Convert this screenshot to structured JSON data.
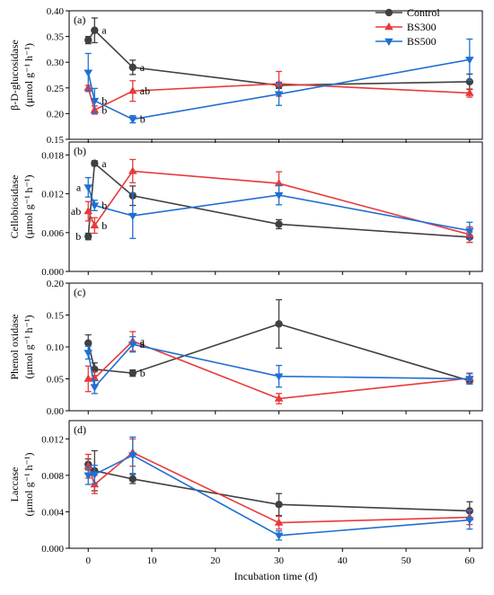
{
  "x_axis": {
    "label": "Incubation time (d)",
    "ticks": [
      "0",
      "10",
      "20",
      "30",
      "40",
      "50",
      "60"
    ],
    "xlim": [
      -3,
      62
    ]
  },
  "legend": {
    "placement": "top-right",
    "items": [
      {
        "name": "Control",
        "color": "#404040",
        "marker": "circle"
      },
      {
        "name": "BS300",
        "color": "#e8393b",
        "marker": "triangle-up"
      },
      {
        "name": "BS500",
        "color": "#1f6fd1",
        "marker": "triangle-down"
      }
    ]
  },
  "panels": [
    {
      "label": "(a)",
      "ylabel_line1": "β-D-glucosidase",
      "ylabel_line2": "(μmol g⁻¹ h⁻¹)",
      "ticks": [
        "0.15",
        "0.20",
        "0.25",
        "0.30",
        "0.35",
        "0.40"
      ]
    },
    {
      "label": "(b)",
      "ylabel_line1": "Cellobiosidase",
      "ylabel_line2": "(μmol g⁻¹ h⁻¹)",
      "ticks": [
        "0.000",
        "0.006",
        "0.012",
        "0.018"
      ]
    },
    {
      "label": "(c)",
      "ylabel_line1": "Phenol oxidase",
      "ylabel_line2": "(μmol g⁻¹ h⁻¹)",
      "ticks": [
        "0.00",
        "0.05",
        "0.10",
        "0.15",
        "0.20"
      ]
    },
    {
      "label": "(d)",
      "ylabel_line1": "Laccase",
      "ylabel_line2": "(μmol g⁻¹ h⁻¹)",
      "ticks": [
        "0.000",
        "0.004",
        "0.008",
        "0.012"
      ]
    }
  ],
  "chart_data": [
    {
      "type": "line",
      "panel": "(a)",
      "ylabel": "β-D-glucosidase (μmol g⁻¹ h⁻¹)",
      "xlabel": "Incubation time (d)",
      "ylim": [
        0.15,
        0.4
      ],
      "x": [
        0,
        1,
        7,
        30,
        60
      ],
      "series": [
        {
          "name": "Control",
          "values": [
            0.343,
            0.362,
            0.29,
            0.255,
            0.262
          ],
          "err": [
            0.007,
            0.024,
            0.014,
            0.006,
            0.015
          ]
        },
        {
          "name": "BS300",
          "values": [
            0.25,
            0.207,
            0.244,
            0.258,
            0.24
          ],
          "err": [
            0.005,
            0.008,
            0.02,
            0.024,
            0.008
          ]
        },
        {
          "name": "BS500",
          "values": [
            0.28,
            0.225,
            0.189,
            0.238,
            0.305
          ],
          "err": [
            0.037,
            0.024,
            0.007,
            0.022,
            0.04
          ]
        }
      ],
      "annotations": [
        {
          "text": "a",
          "x": 1,
          "y": 0.362
        },
        {
          "text": "b",
          "x": 1,
          "y": 0.207
        },
        {
          "text": "b",
          "x": 1,
          "y": 0.225
        },
        {
          "text": "a",
          "x": 7,
          "y": 0.29
        },
        {
          "text": "ab",
          "x": 7,
          "y": 0.244
        },
        {
          "text": "b",
          "x": 7,
          "y": 0.189
        }
      ]
    },
    {
      "type": "line",
      "panel": "(b)",
      "ylabel": "Cellobiosidase (μmol g⁻¹ h⁻¹)",
      "xlabel": "Incubation time (d)",
      "ylim": [
        0.0,
        0.02
      ],
      "x": [
        0,
        1,
        7,
        30,
        60
      ],
      "series": [
        {
          "name": "Control",
          "values": [
            0.0054,
            0.0167,
            0.0117,
            0.0073,
            0.0053
          ],
          "err": [
            0.0005,
            0.0004,
            0.0015,
            0.0007,
            0.0008
          ]
        },
        {
          "name": "BS300",
          "values": [
            0.0093,
            0.0071,
            0.0155,
            0.0136,
            0.0057
          ],
          "err": [
            0.0015,
            0.0012,
            0.0018,
            0.0018,
            0.0012
          ]
        },
        {
          "name": "BS500",
          "values": [
            0.013,
            0.0102,
            0.0086,
            0.0118,
            0.0063
          ],
          "err": [
            0.0015,
            0.0008,
            0.0035,
            0.0015,
            0.0013
          ]
        }
      ],
      "annotations": [
        {
          "text": "a",
          "x": 0,
          "y": 0.013
        },
        {
          "text": "ab",
          "x": 0,
          "y": 0.0093
        },
        {
          "text": "b",
          "x": 0,
          "y": 0.0054
        },
        {
          "text": "a",
          "x": 1,
          "y": 0.0167
        },
        {
          "text": "b",
          "x": 1,
          "y": 0.0102
        },
        {
          "text": "b",
          "x": 1,
          "y": 0.0071
        }
      ]
    },
    {
      "type": "line",
      "panel": "(c)",
      "ylabel": "Phenol oxidase (μmol g⁻¹ h⁻¹)",
      "xlabel": "Incubation time (d)",
      "ylim": [
        0.0,
        0.2
      ],
      "x": [
        0,
        1,
        7,
        30,
        60
      ],
      "series": [
        {
          "name": "Control",
          "values": [
            0.106,
            0.065,
            0.059,
            0.136,
            0.047
          ],
          "err": [
            0.013,
            0.01,
            0.005,
            0.038,
            0.005
          ]
        },
        {
          "name": "BS300",
          "values": [
            0.05,
            0.051,
            0.109,
            0.019,
            0.051
          ],
          "err": [
            0.02,
            0.01,
            0.015,
            0.008,
            0.008
          ]
        },
        {
          "name": "BS500",
          "values": [
            0.091,
            0.037,
            0.104,
            0.054,
            0.05
          ],
          "err": [
            0.01,
            0.01,
            0.012,
            0.017,
            0.008
          ]
        }
      ],
      "annotations": [
        {
          "text": "a",
          "x": 7,
          "y": 0.109
        },
        {
          "text": "a",
          "x": 7,
          "y": 0.104
        },
        {
          "text": "b",
          "x": 7,
          "y": 0.059
        }
      ]
    },
    {
      "type": "line",
      "panel": "(d)",
      "ylabel": "Laccase (μmol g⁻¹ h⁻¹)",
      "xlabel": "Incubation time (d)",
      "ylim": [
        0.0,
        0.014
      ],
      "x": [
        0,
        1,
        7,
        30,
        60
      ],
      "series": [
        {
          "name": "Control",
          "values": [
            0.0092,
            0.0085,
            0.0076,
            0.0048,
            0.0041
          ],
          "err": [
            0.0006,
            0.0022,
            0.0005,
            0.0012,
            0.001
          ]
        },
        {
          "name": "BS300",
          "values": [
            0.009,
            0.007,
            0.0105,
            0.0028,
            0.0034
          ],
          "err": [
            0.0013,
            0.001,
            0.0015,
            0.0007,
            0.0008
          ]
        },
        {
          "name": "BS500",
          "values": [
            0.008,
            0.0081,
            0.0102,
            0.0014,
            0.0031
          ],
          "err": [
            0.001,
            0.001,
            0.002,
            0.0005,
            0.001
          ]
        }
      ],
      "annotations": []
    }
  ]
}
